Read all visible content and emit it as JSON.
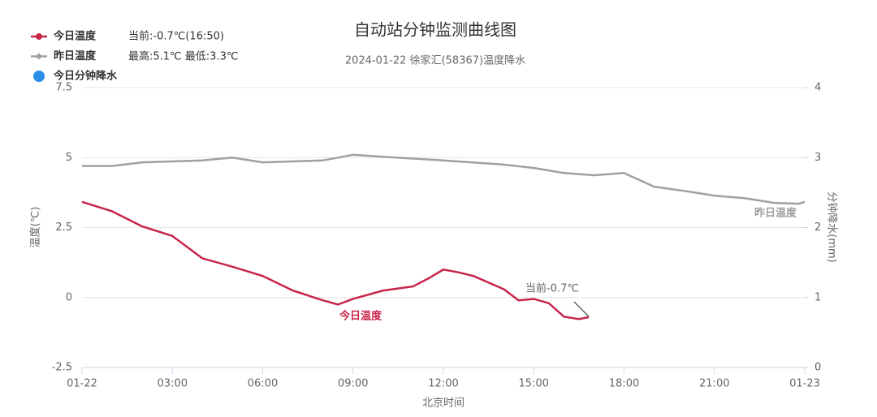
{
  "chart_data": {
    "type": "line",
    "title": "自动站分钟监测曲线图",
    "subtitle": "2024-01-22 徐家汇(58367)温度降水",
    "xlabel": "北京时间",
    "ylabel": "温度(℃)",
    "y2label": "分钟降水(mm)",
    "legend_notes": [
      "当前:-0.7℃(16:50)",
      "最高:5.1℃ 最低:3.3℃"
    ],
    "current_label": "当前-0.7℃",
    "legend": "top-left",
    "grid": true,
    "xlim": [
      0,
      24
    ],
    "xticks": [
      {
        "value": 0,
        "label": "01-22"
      },
      {
        "value": 3,
        "label": "03:00"
      },
      {
        "value": 6,
        "label": "06:00"
      },
      {
        "value": 9,
        "label": "09:00"
      },
      {
        "value": 12,
        "label": "12:00"
      },
      {
        "value": 15,
        "label": "15:00"
      },
      {
        "value": 18,
        "label": "18:00"
      },
      {
        "value": 21,
        "label": "21:00"
      },
      {
        "value": 24,
        "label": "01-23"
      }
    ],
    "ylim": [
      -2.5,
      7.5
    ],
    "yticks": [
      -2.5,
      0,
      2.5,
      5,
      7.5
    ],
    "y2lim": [
      0,
      4
    ],
    "y2ticks": [
      0,
      1,
      2,
      3,
      4
    ],
    "series": [
      {
        "name": "今日温度",
        "color": "#c8254b",
        "x": [
          0,
          1,
          2,
          3,
          4,
          5,
          6,
          7,
          8,
          8.5,
          9,
          10,
          11,
          11.5,
          12,
          12.5,
          13,
          14,
          14.5,
          15,
          15.5,
          16,
          16.5,
          16.83
        ],
        "values": [
          3.42,
          3.08,
          2.54,
          2.2,
          1.4,
          1.1,
          0.77,
          0.25,
          -0.1,
          -0.25,
          -0.05,
          0.25,
          0.4,
          0.68,
          1.0,
          0.9,
          0.77,
          0.3,
          -0.1,
          -0.05,
          -0.2,
          -0.68,
          -0.77,
          -0.7
        ]
      },
      {
        "name": "昨日温度",
        "color": "#a0a0a0",
        "x": [
          0,
          1,
          2,
          4,
          5,
          6,
          8,
          9,
          10,
          12,
          14,
          15,
          16,
          17,
          18,
          19,
          20,
          21,
          22,
          23,
          23.8,
          24
        ],
        "values": [
          4.7,
          4.7,
          4.83,
          4.9,
          5.0,
          4.83,
          4.9,
          5.1,
          5.03,
          4.9,
          4.75,
          4.63,
          4.45,
          4.37,
          4.45,
          3.96,
          3.81,
          3.64,
          3.55,
          3.38,
          3.35,
          3.42
        ]
      },
      {
        "name": "今日分钟降水",
        "color": "#2b8ee8",
        "axis": "y2",
        "x": [
          0
        ],
        "values": [
          null
        ]
      }
    ]
  }
}
